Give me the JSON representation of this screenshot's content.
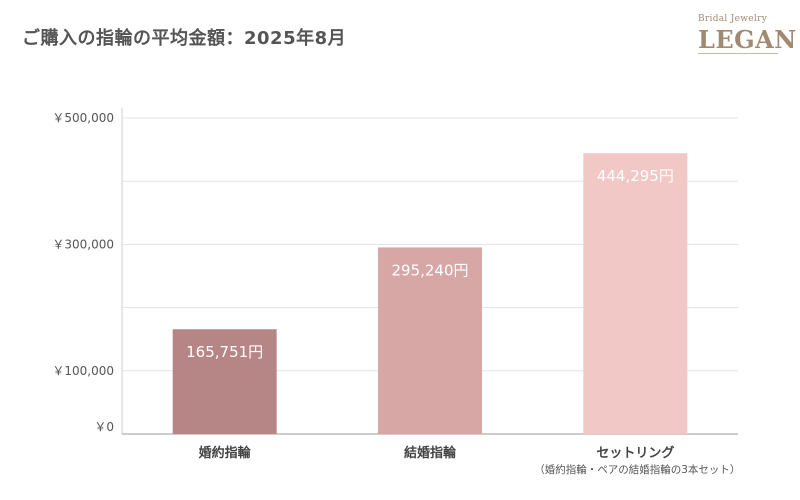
{
  "header": {
    "title": "ご購入の指輪の平均金額：2025年8月"
  },
  "logo": {
    "small": "Bridal Jewelry",
    "big": "LEGAN"
  },
  "chart_data": {
    "type": "bar",
    "categories": [
      "婚約指輪",
      "結婚指輪",
      "セットリング"
    ],
    "category_sublabels": [
      "",
      "",
      "（婚約指輪・ペアの結婚指輪の3本セット）"
    ],
    "values": [
      165751,
      295240,
      444295
    ],
    "value_labels": [
      "165,751円",
      "295,240円",
      "444,295円"
    ],
    "bar_colors": [
      "#b58685",
      "#d7a7a5",
      "#f2c8c6"
    ],
    "value_label_color": "#ffffff",
    "ylim": [
      0,
      500000
    ],
    "yticks_labeled": [
      {
        "value": 0,
        "label": "￥0"
      },
      {
        "value": 100000,
        "label": "￥100,000"
      },
      {
        "value": 300000,
        "label": "￥300,000"
      },
      {
        "value": 500000,
        "label": "￥500,000"
      }
    ],
    "gridlines": [
      100000,
      200000,
      300000,
      400000,
      500000
    ],
    "grid": true,
    "title": "",
    "xlabel": "",
    "ylabel": ""
  }
}
